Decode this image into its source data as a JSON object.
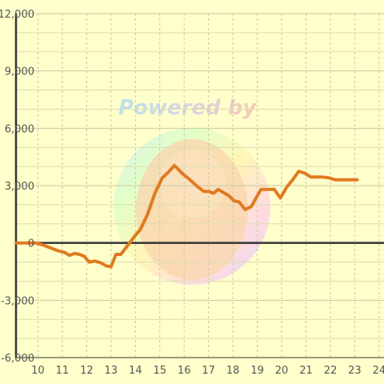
{
  "chart_data": {
    "type": "line",
    "title": "",
    "xlabel": "",
    "ylabel": "",
    "xlim": [
      9.1,
      24.2
    ],
    "ylim": [
      -6000,
      12000
    ],
    "x_ticks": [
      "10",
      "11",
      "12",
      "13",
      "14",
      "15",
      "16",
      "17",
      "18",
      "19",
      "20",
      "21",
      "22",
      "23",
      "24"
    ],
    "y_ticks": [
      "12,000",
      "9,000",
      "6,000",
      "3,000",
      "0",
      "-3,000",
      "-6,000"
    ],
    "y_tick_values": [
      12000,
      9000,
      6000,
      3000,
      0,
      -3000,
      -6000
    ],
    "grid": true,
    "series": [
      {
        "color": "#e07a20",
        "x": [
          9.1,
          9.5,
          9.9,
          10.2,
          10.5,
          10.8,
          11.1,
          11.3,
          11.5,
          11.7,
          11.9,
          12.1,
          12.35,
          12.6,
          12.8,
          13.0,
          13.2,
          13.4,
          13.7,
          14.0,
          14.2,
          14.5,
          14.8,
          15.1,
          15.35,
          15.6,
          15.8,
          16.0,
          16.2,
          16.5,
          16.8,
          17.0,
          17.2,
          17.4,
          17.6,
          17.85,
          18.05,
          18.25,
          18.5,
          18.75,
          18.95,
          19.15,
          19.45,
          19.7,
          19.95,
          20.2,
          20.45,
          20.7,
          20.95,
          21.2,
          21.45,
          21.7,
          21.95,
          22.2,
          22.45,
          22.7,
          22.95,
          23.1
        ],
        "values": [
          0,
          0,
          0,
          -100,
          -250,
          -400,
          -500,
          -650,
          -550,
          -600,
          -700,
          -1000,
          -950,
          -1050,
          -1200,
          -1250,
          -600,
          -600,
          -100,
          400,
          700,
          1500,
          2600,
          3400,
          3700,
          4050,
          3800,
          3550,
          3350,
          3000,
          2700,
          2700,
          2600,
          2800,
          2650,
          2450,
          2200,
          2150,
          1750,
          1900,
          2350,
          2800,
          2800,
          2800,
          2350,
          2900,
          3300,
          3750,
          3650,
          3450,
          3450,
          3450,
          3400,
          3300,
          3300,
          3300,
          3300,
          3300
        ]
      }
    ],
    "legend": "none"
  },
  "watermark": {
    "text": "Powered by"
  }
}
